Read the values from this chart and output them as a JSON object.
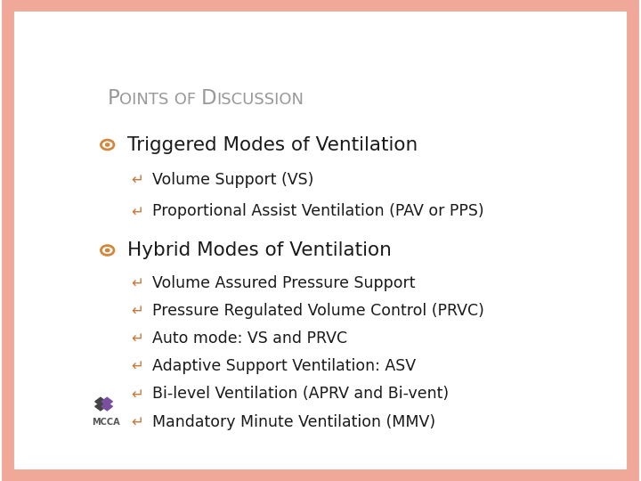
{
  "title_color": "#999999",
  "background_color": "#FFFFFF",
  "border_color": "#F0A898",
  "text_color": "#1a1a1a",
  "bullet_color": "#D4873A",
  "subbullet_color": "#C8783A",
  "level1_bullets": [
    "Triggered Modes of Ventilation",
    "Hybrid Modes of Ventilation"
  ],
  "level2_bullets_triggered": [
    "Volume Support (VS)",
    "Proportional Assist Ventilation (PAV or PPS)"
  ],
  "level2_bullets_hybrid": [
    "Volume Assured Pressure Support",
    "Pressure Regulated Volume Control (PRVC)",
    "Auto mode: VS and PRVC",
    "Adaptive Support Ventilation: ASV",
    "Bi-level Ventilation (APRV and Bi-vent)",
    "Mandatory Minute Ventilation (MMV)"
  ],
  "mcca_text_color": "#555555",
  "mcca_diamond_dark": "#444444",
  "mcca_diamond_purple": "#7B4FA0"
}
